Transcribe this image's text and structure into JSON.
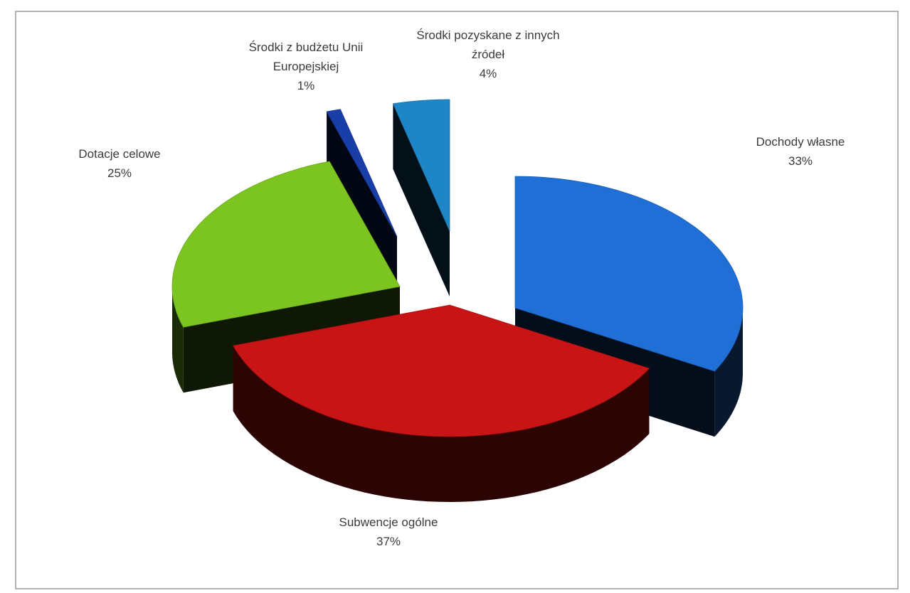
{
  "chart_data": {
    "type": "pie",
    "style": "3d-exploded",
    "title": "",
    "legend": "none",
    "slices": [
      {
        "name": "Dochody własne",
        "label_lines": [
          "Dochody własne"
        ],
        "pct_label": "33%",
        "value": 33,
        "color": "#1f6fd6"
      },
      {
        "name": "Subwencje ogólne",
        "label_lines": [
          "Subwencje ogólne"
        ],
        "pct_label": "37%",
        "value": 37,
        "color": "#c81414"
      },
      {
        "name": "Dotacje celowe",
        "label_lines": [
          "Dotacje celowe"
        ],
        "pct_label": "25%",
        "value": 25,
        "color": "#7cc520"
      },
      {
        "name": "Środki z budżetu Unii Europejskiej",
        "label_lines": [
          "Środki z budżetu Unii",
          "Europejskiej"
        ],
        "pct_label": "1%",
        "value": 1,
        "color": "#1a3ea8"
      },
      {
        "name": "Środki pozyskane z innych źródeł",
        "label_lines": [
          "Środki pozyskane z innych",
          "źródeł"
        ],
        "pct_label": "4%",
        "value": 4,
        "color": "#1e86c6"
      }
    ]
  }
}
